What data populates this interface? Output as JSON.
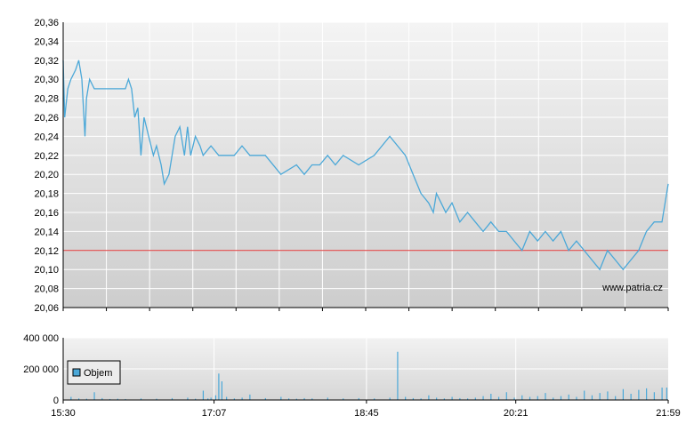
{
  "chart_data": [
    {
      "type": "line",
      "y_ticks": [
        "20,36",
        "20,34",
        "20,32",
        "20,30",
        "20,28",
        "20,26",
        "20,24",
        "20,22",
        "20,20",
        "20,18",
        "20,16",
        "20,14",
        "20,12",
        "20,10",
        "20,08",
        "20,06"
      ],
      "ylim": [
        20.06,
        20.36
      ],
      "xlim": [
        "15:30",
        "21:59"
      ],
      "reference_line": 20.12,
      "reference_color": "#dd3333",
      "line_color": "#4ba8d8",
      "grid": true,
      "watermark": "www.patria.cz",
      "series": [
        {
          "x": [
            "15:30",
            "15:31",
            "15:33",
            "15:35",
            "15:38",
            "15:40",
            "15:42",
            "15:44",
            "15:45",
            "15:47",
            "15:50",
            "15:55",
            "16:00",
            "16:05",
            "16:10",
            "16:12",
            "16:14",
            "16:16",
            "16:18",
            "16:20",
            "16:22",
            "16:25",
            "16:28",
            "16:30",
            "16:33",
            "16:35",
            "16:38",
            "16:40",
            "16:42",
            "16:45",
            "16:48",
            "16:50",
            "16:52",
            "16:55",
            "16:58",
            "17:00",
            "17:05",
            "17:10",
            "17:15",
            "17:20",
            "17:25",
            "17:30",
            "17:40",
            "17:50",
            "18:00",
            "18:05",
            "18:10",
            "18:15",
            "18:20",
            "18:25",
            "18:30",
            "18:40",
            "18:50",
            "19:00",
            "19:10",
            "19:15",
            "19:20",
            "19:25",
            "19:28",
            "19:30",
            "19:33",
            "19:36",
            "19:40",
            "19:45",
            "19:50",
            "19:55",
            "20:00",
            "20:05",
            "20:10",
            "20:15",
            "20:20",
            "20:25",
            "20:30",
            "20:35",
            "20:40",
            "20:45",
            "20:50",
            "20:55",
            "21:00",
            "21:05",
            "21:10",
            "21:15",
            "21:20",
            "21:25",
            "21:30",
            "21:35",
            "21:40",
            "21:45",
            "21:50",
            "21:55",
            "21:57",
            "21:59"
          ],
          "y": [
            20.32,
            20.26,
            20.29,
            20.3,
            20.31,
            20.32,
            20.3,
            20.24,
            20.28,
            20.3,
            20.29,
            20.29,
            20.29,
            20.29,
            20.29,
            20.3,
            20.29,
            20.26,
            20.27,
            20.22,
            20.26,
            20.24,
            20.22,
            20.23,
            20.21,
            20.19,
            20.2,
            20.22,
            20.24,
            20.25,
            20.22,
            20.25,
            20.22,
            20.24,
            20.23,
            20.22,
            20.23,
            20.22,
            20.22,
            20.22,
            20.23,
            20.22,
            20.22,
            20.2,
            20.21,
            20.2,
            20.21,
            20.21,
            20.22,
            20.21,
            20.22,
            20.21,
            20.22,
            20.24,
            20.22,
            20.2,
            20.18,
            20.17,
            20.16,
            20.18,
            20.17,
            20.16,
            20.17,
            20.15,
            20.16,
            20.15,
            20.14,
            20.15,
            20.14,
            20.14,
            20.13,
            20.12,
            20.14,
            20.13,
            20.14,
            20.13,
            20.14,
            20.12,
            20.13,
            20.12,
            20.11,
            20.1,
            20.12,
            20.11,
            20.1,
            20.11,
            20.12,
            20.14,
            20.15,
            20.15,
            20.17,
            20.19
          ]
        }
      ]
    },
    {
      "type": "bar",
      "y_ticks": [
        "400 000",
        "200 000",
        "0"
      ],
      "ylim": [
        0,
        400000
      ],
      "x_ticks": [
        "15:30",
        "17:07",
        "18:45",
        "20:21",
        "21:59"
      ],
      "legend": "Objem",
      "legend_placement": "bottom-left",
      "bar_color": "#4ba8d8",
      "grid": true,
      "series": [
        {
          "name": "Objem",
          "x": [
            "15:35",
            "15:40",
            "15:45",
            "15:50",
            "15:55",
            "16:00",
            "16:05",
            "16:10",
            "16:20",
            "16:30",
            "16:40",
            "16:50",
            "16:55",
            "17:00",
            "17:03",
            "17:05",
            "17:08",
            "17:10",
            "17:12",
            "17:15",
            "17:20",
            "17:25",
            "17:30",
            "17:40",
            "17:50",
            "17:55",
            "18:00",
            "18:05",
            "18:10",
            "18:20",
            "18:30",
            "18:40",
            "18:50",
            "19:00",
            "19:05",
            "19:10",
            "19:15",
            "19:20",
            "19:25",
            "19:30",
            "19:35",
            "19:40",
            "19:45",
            "19:50",
            "19:55",
            "20:00",
            "20:05",
            "20:10",
            "20:15",
            "20:20",
            "20:25",
            "20:30",
            "20:35",
            "20:40",
            "20:45",
            "20:50",
            "20:55",
            "21:00",
            "21:05",
            "21:10",
            "21:15",
            "21:20",
            "21:25",
            "21:30",
            "21:35",
            "21:40",
            "21:45",
            "21:50",
            "21:55",
            "21:58"
          ],
          "values": [
            20000,
            10000,
            8000,
            50000,
            12000,
            6000,
            8000,
            6000,
            10000,
            8000,
            12000,
            15000,
            8000,
            60000,
            10000,
            15000,
            30000,
            170000,
            120000,
            20000,
            10000,
            15000,
            35000,
            12000,
            20000,
            10000,
            8000,
            12000,
            10000,
            15000,
            10000,
            12000,
            10000,
            15000,
            310000,
            20000,
            12000,
            10000,
            30000,
            15000,
            10000,
            20000,
            12000,
            10000,
            15000,
            25000,
            40000,
            20000,
            50000,
            15000,
            30000,
            20000,
            25000,
            45000,
            15000,
            25000,
            35000,
            20000,
            60000,
            30000,
            45000,
            55000,
            25000,
            70000,
            40000,
            65000,
            75000,
            50000,
            80000,
            80000
          ]
        }
      ]
    }
  ]
}
